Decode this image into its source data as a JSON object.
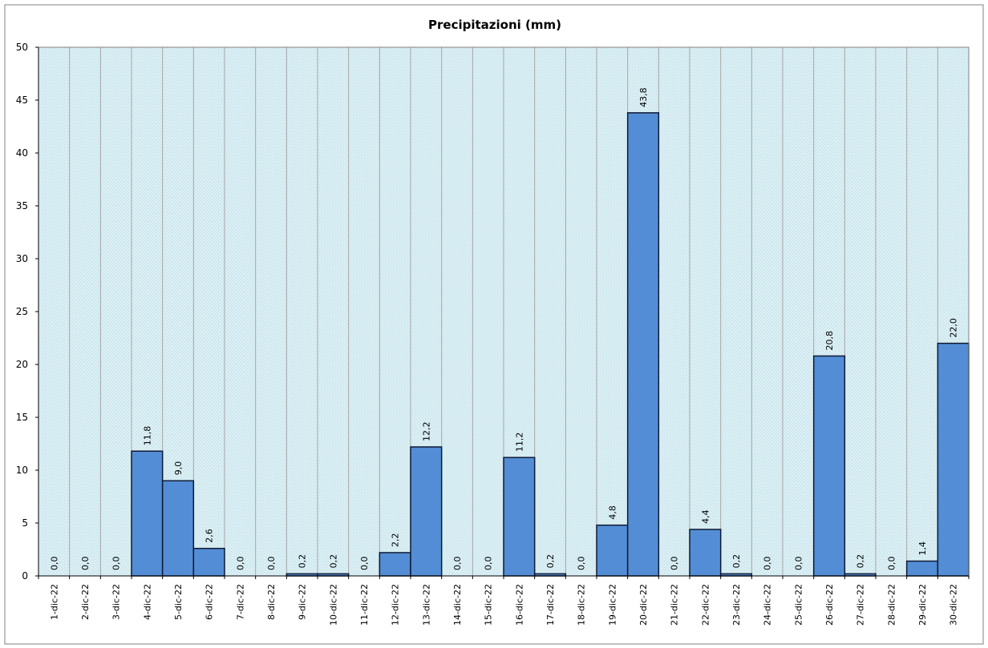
{
  "chart_data": {
    "type": "bar",
    "title": "Precipitazioni  (mm)",
    "xlabel": "",
    "ylabel": "",
    "ylim": [
      0,
      50
    ],
    "yticks": [
      "0",
      "5",
      "10",
      "15",
      "20",
      "25",
      "30",
      "35",
      "40",
      "45",
      "50"
    ],
    "grid": "vertical",
    "categories": [
      "1-dic-22",
      "2-dic-22",
      "3-dic-22",
      "4-dic-22",
      "5-dic-22",
      "6-dic-22",
      "7-dic-22",
      "8-dic-22",
      "9-dic-22",
      "10-dic-22",
      "11-dic-22",
      "12-dic-22",
      "13-dic-22",
      "14-dic-22",
      "15-dic-22",
      "16-dic-22",
      "17-dic-22",
      "18-dic-22",
      "19-dic-22",
      "20-dic-22",
      "21-dic-22",
      "22-dic-22",
      "23-dic-22",
      "24-dic-22",
      "25-dic-22",
      "26-dic-22",
      "27-dic-22",
      "28-dic-22",
      "29-dic-22",
      "30-dic-22"
    ],
    "values": [
      0.0,
      0.0,
      0.0,
      11.8,
      9.0,
      2.6,
      0.0,
      0.0,
      0.2,
      0.2,
      0.0,
      2.2,
      12.2,
      0.0,
      0.0,
      11.2,
      0.2,
      0.0,
      4.8,
      43.8,
      0.0,
      4.4,
      0.2,
      0.0,
      0.0,
      20.8,
      0.2,
      0.0,
      1.4,
      22.0
    ],
    "data_labels": [
      "0,0",
      "0,0",
      "0,0",
      "11,8",
      "9,0",
      "2,6",
      "0,0",
      "0,0",
      "0,2",
      "0,2",
      "0,0",
      "2,2",
      "12,2",
      "0,0",
      "0,0",
      "11,2",
      "0,2",
      "0,0",
      "4,8",
      "43,8",
      "0,0",
      "4,4",
      "0,2",
      "0,0",
      "0,0",
      "20,8",
      "0,2",
      "0,0",
      "1,4",
      "22,0"
    ],
    "colors": {
      "bar": "#538DD5",
      "bar_edge": "#0E1A33",
      "plot_bg": "#DAEEF3",
      "grid": "#A6A6A6"
    }
  }
}
